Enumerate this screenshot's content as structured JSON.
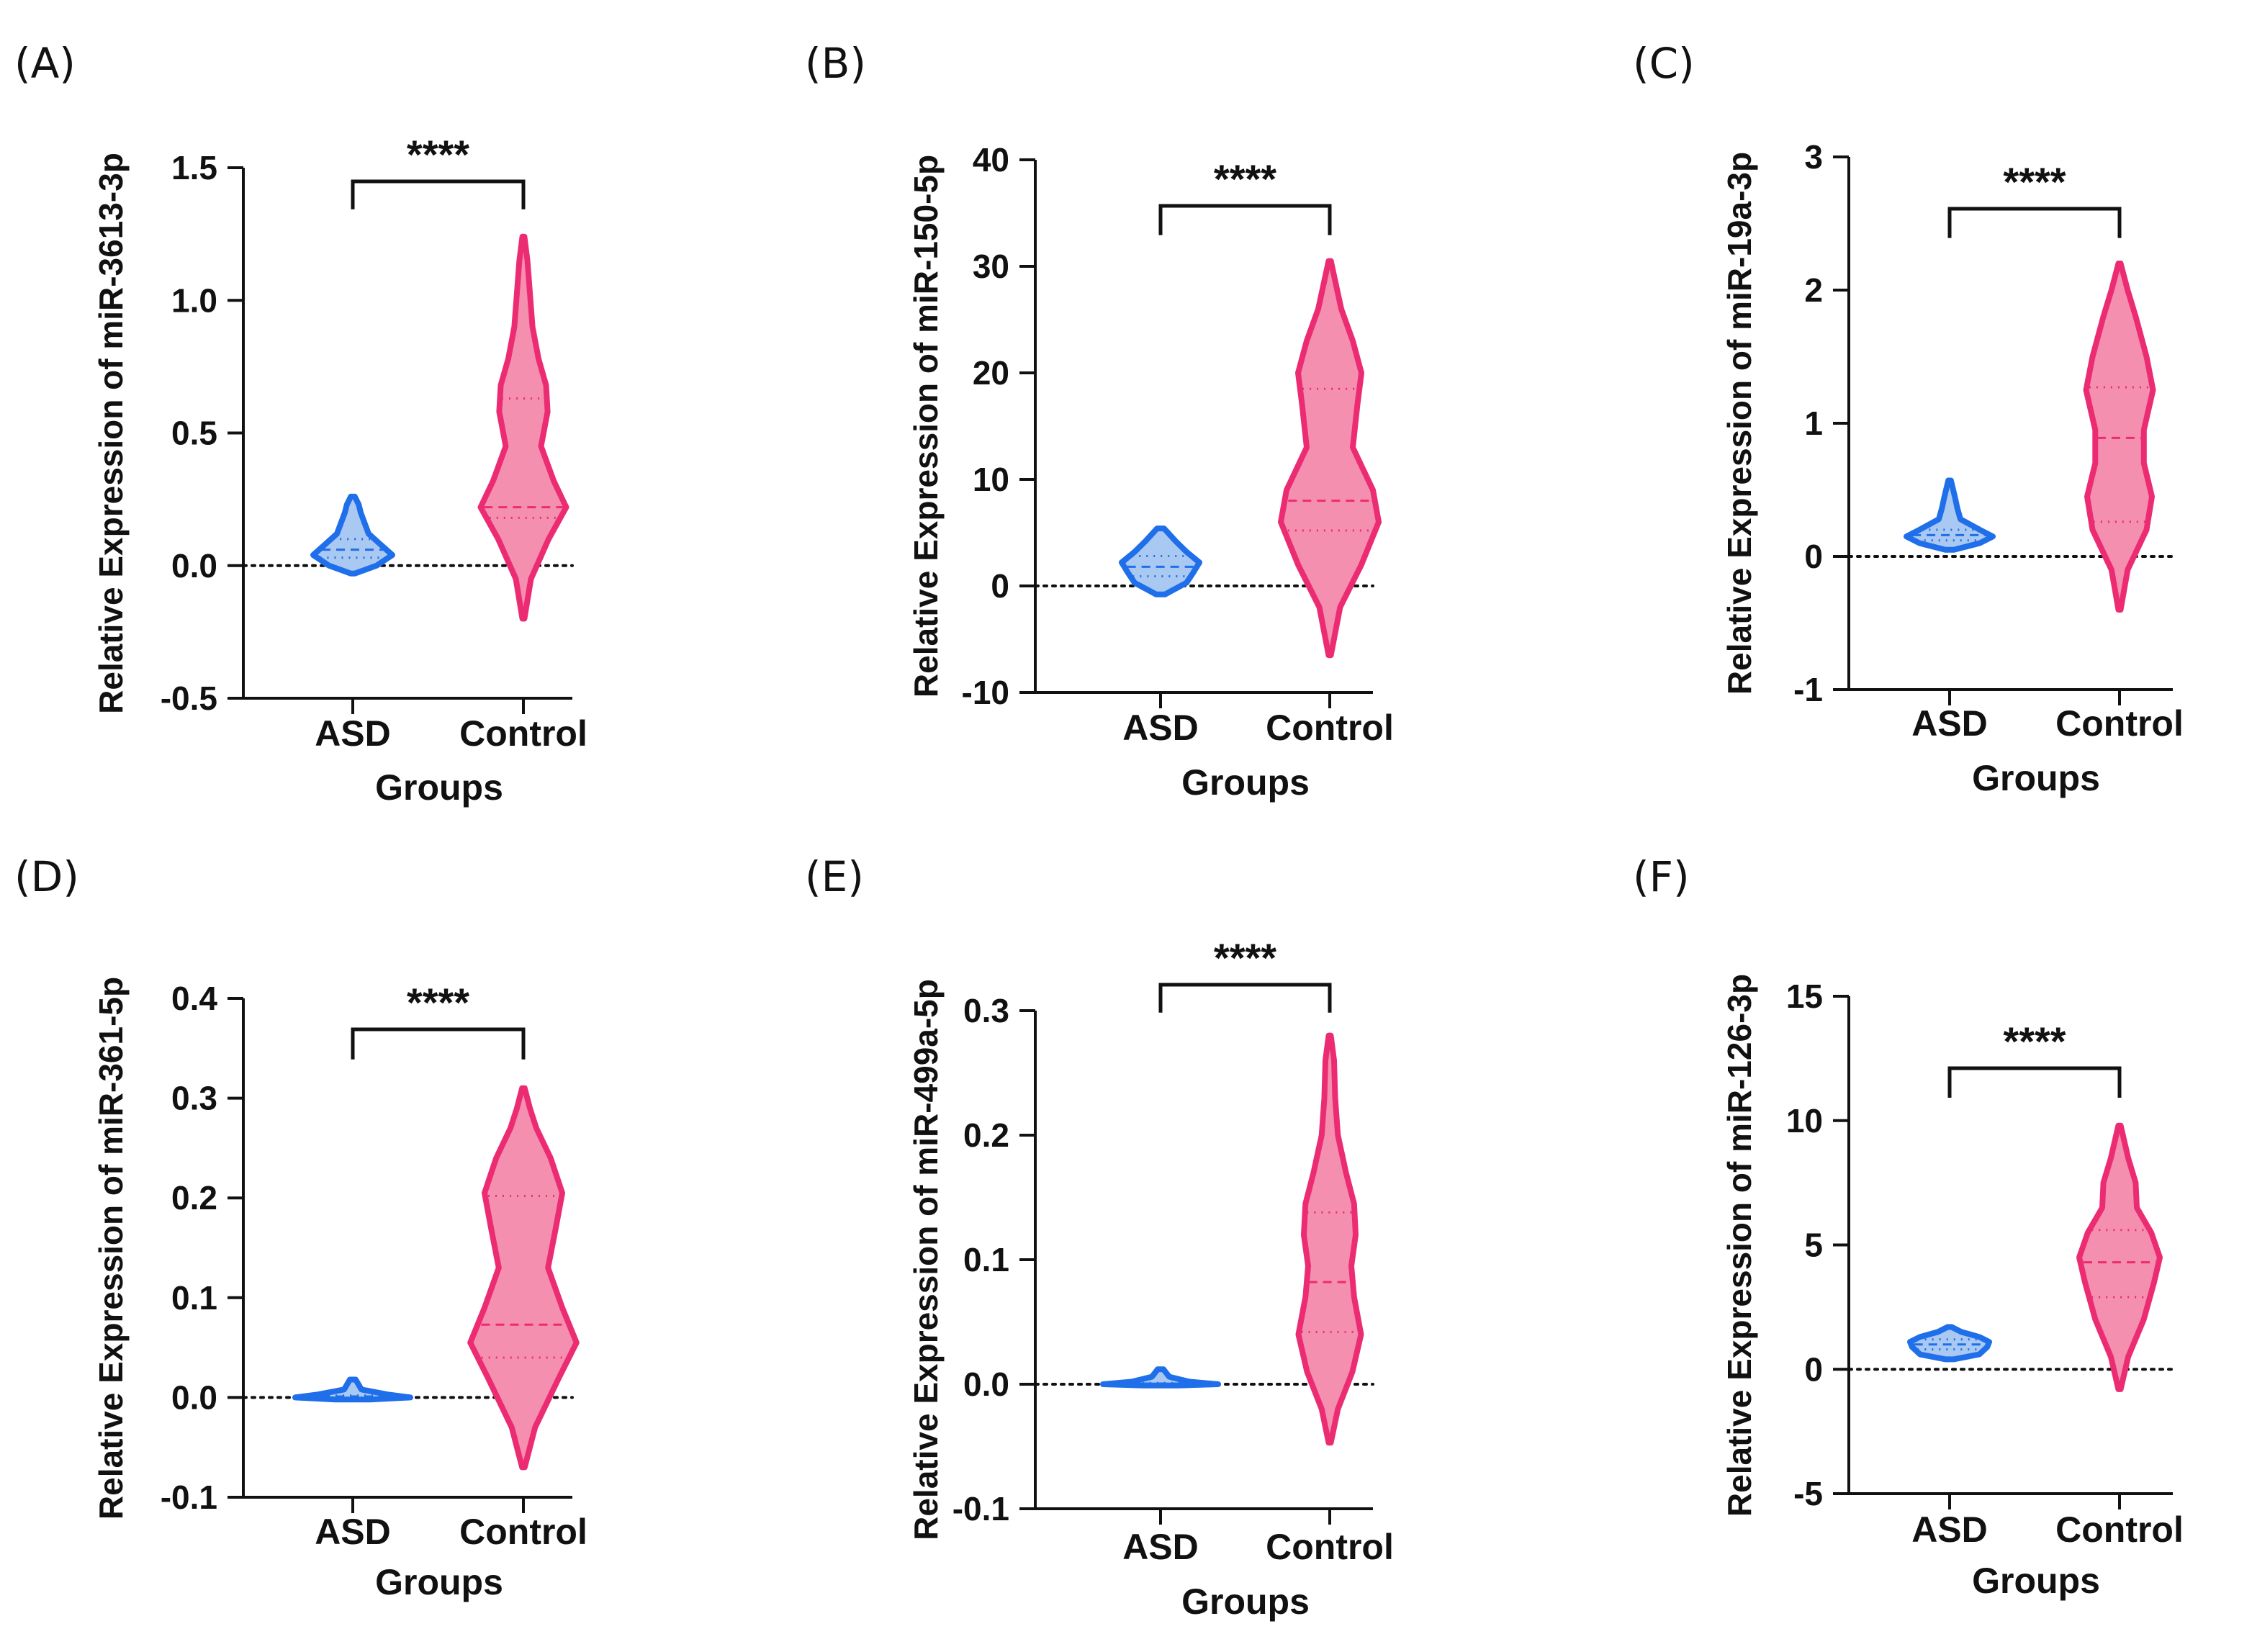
{
  "colors": {
    "asd_stroke": "#1f6fea",
    "asd_fill": "#a9c8f2",
    "control_stroke": "#ec2c72",
    "control_fill": "#f58fb0",
    "axis": "#111111"
  },
  "chart_data": [
    {
      "panel": "(A)",
      "type": "violin",
      "ylabel": "Relative Expression of miR-3613-3p",
      "xlabel": "Groups",
      "categories": [
        "ASD",
        "Control"
      ],
      "ylim": [
        -0.5,
        1.5
      ],
      "yticks": [
        -0.5,
        0.0,
        0.5,
        1.0,
        1.5
      ],
      "ytick_labels": [
        "-0.5",
        "0.0",
        "0.5",
        "1.0",
        "1.5"
      ],
      "significance": "****",
      "reference_line": 0,
      "series": [
        {
          "name": "ASD",
          "min": -0.03,
          "max": 0.26,
          "q1": 0.03,
          "median": 0.06,
          "q3": 0.1,
          "density": [
            [
              -0.03,
              0.05
            ],
            [
              0.0,
              0.6
            ],
            [
              0.04,
              1.0
            ],
            [
              0.08,
              0.7
            ],
            [
              0.12,
              0.4
            ],
            [
              0.16,
              0.3
            ],
            [
              0.2,
              0.2
            ],
            [
              0.23,
              0.15
            ],
            [
              0.26,
              0.05
            ]
          ]
        },
        {
          "name": "Control",
          "min": -0.2,
          "max": 1.24,
          "q1": 0.18,
          "median": 0.22,
          "q3": 0.63,
          "density": [
            [
              -0.2,
              0.02
            ],
            [
              -0.05,
              0.15
            ],
            [
              0.1,
              0.5
            ],
            [
              0.22,
              0.85
            ],
            [
              0.32,
              0.6
            ],
            [
              0.45,
              0.35
            ],
            [
              0.58,
              0.48
            ],
            [
              0.68,
              0.45
            ],
            [
              0.78,
              0.3
            ],
            [
              0.9,
              0.18
            ],
            [
              1.05,
              0.12
            ],
            [
              1.15,
              0.08
            ],
            [
              1.24,
              0.02
            ]
          ]
        }
      ]
    },
    {
      "panel": "(B)",
      "type": "violin",
      "ylabel": "Relative Expression of miR-150-5p",
      "xlabel": "Groups",
      "categories": [
        "ASD",
        "Control"
      ],
      "ylim": [
        -10,
        40
      ],
      "yticks": [
        -10,
        0,
        10,
        20,
        30,
        40
      ],
      "ytick_labels": [
        "-10",
        "0",
        "10",
        "20",
        "30",
        "40"
      ],
      "significance": "****",
      "reference_line": 0,
      "series": [
        {
          "name": "ASD",
          "min": -0.8,
          "max": 5.4,
          "q1": 0.9,
          "median": 1.8,
          "q3": 2.8,
          "density": [
            [
              -0.8,
              0.1
            ],
            [
              0.3,
              0.6
            ],
            [
              1.2,
              0.75
            ],
            [
              2.2,
              0.9
            ],
            [
              3.2,
              0.6
            ],
            [
              4.2,
              0.35
            ],
            [
              5.4,
              0.08
            ]
          ]
        },
        {
          "name": "Control",
          "min": -6.5,
          "max": 30.5,
          "q1": 5.2,
          "median": 8.0,
          "q3": 18.5,
          "density": [
            [
              -6.5,
              0.02
            ],
            [
              -2,
              0.18
            ],
            [
              2,
              0.55
            ],
            [
              6,
              0.85
            ],
            [
              9,
              0.75
            ],
            [
              13,
              0.4
            ],
            [
              17,
              0.48
            ],
            [
              20,
              0.55
            ],
            [
              23,
              0.4
            ],
            [
              26,
              0.2
            ],
            [
              28,
              0.12
            ],
            [
              30.5,
              0.02
            ]
          ]
        }
      ]
    },
    {
      "panel": "(C)",
      "type": "violin",
      "ylabel": "Relative Expression of miR-19a-3p",
      "xlabel": "Groups",
      "categories": [
        "ASD",
        "Control"
      ],
      "ylim": [
        -1,
        3
      ],
      "yticks": [
        -1,
        0,
        1,
        2,
        3
      ],
      "ytick_labels": [
        "-1",
        "0",
        "1",
        "2",
        "3"
      ],
      "significance": "****",
      "reference_line": 0,
      "series": [
        {
          "name": "ASD",
          "min": 0.05,
          "max": 0.57,
          "q1": 0.12,
          "median": 0.16,
          "q3": 0.2,
          "density": [
            [
              0.05,
              0.1
            ],
            [
              0.1,
              0.7
            ],
            [
              0.15,
              1.0
            ],
            [
              0.2,
              0.7
            ],
            [
              0.28,
              0.25
            ],
            [
              0.36,
              0.18
            ],
            [
              0.45,
              0.12
            ],
            [
              0.57,
              0.03
            ]
          ]
        },
        {
          "name": "Control",
          "min": -0.4,
          "max": 2.2,
          "q1": 0.26,
          "median": 0.89,
          "q3": 1.27,
          "density": [
            [
              -0.4,
              0.02
            ],
            [
              -0.1,
              0.15
            ],
            [
              0.2,
              0.5
            ],
            [
              0.45,
              0.6
            ],
            [
              0.7,
              0.45
            ],
            [
              0.95,
              0.45
            ],
            [
              1.25,
              0.62
            ],
            [
              1.5,
              0.5
            ],
            [
              1.8,
              0.3
            ],
            [
              2.0,
              0.15
            ],
            [
              2.2,
              0.02
            ]
          ]
        }
      ]
    },
    {
      "panel": "(D)",
      "type": "violin",
      "ylabel": "Relative Expression of miR-361-5p",
      "xlabel": "Groups",
      "categories": [
        "ASD",
        "Control"
      ],
      "ylim": [
        -0.1,
        0.4
      ],
      "yticks": [
        -0.1,
        0.0,
        0.1,
        0.2,
        0.3,
        0.4
      ],
      "ytick_labels": [
        "-0.1",
        "0.0",
        "0.1",
        "0.2",
        "0.3",
        "0.4"
      ],
      "significance": "****",
      "reference_line": 0,
      "series": [
        {
          "name": "ASD",
          "min": -0.002,
          "max": 0.018,
          "q1": 0.0,
          "median": 0.001,
          "q3": 0.002,
          "density": [
            [
              -0.002,
              0.3
            ],
            [
              0.0,
              1.0
            ],
            [
              0.003,
              0.6
            ],
            [
              0.008,
              0.15
            ],
            [
              0.013,
              0.1
            ],
            [
              0.018,
              0.05
            ]
          ]
        },
        {
          "name": "Control",
          "min": -0.07,
          "max": 0.31,
          "q1": 0.04,
          "median": 0.073,
          "q3": 0.202,
          "density": [
            [
              -0.07,
              0.02
            ],
            [
              -0.03,
              0.18
            ],
            [
              0.02,
              0.55
            ],
            [
              0.055,
              0.82
            ],
            [
              0.09,
              0.6
            ],
            [
              0.13,
              0.38
            ],
            [
              0.17,
              0.5
            ],
            [
              0.205,
              0.6
            ],
            [
              0.24,
              0.42
            ],
            [
              0.27,
              0.2
            ],
            [
              0.29,
              0.1
            ],
            [
              0.31,
              0.02
            ]
          ]
        }
      ]
    },
    {
      "panel": "(E)",
      "type": "violin",
      "ylabel": "Relative Expression of miR-499a-5p",
      "xlabel": "Groups",
      "categories": [
        "ASD",
        "Control"
      ],
      "ylim": [
        -0.1,
        0.3
      ],
      "yticks": [
        -0.1,
        0.0,
        0.1,
        0.2,
        0.3
      ],
      "ytick_labels": [
        "-0.1",
        "0.0",
        "0.1",
        "0.2",
        "0.3"
      ],
      "significance": "****",
      "reference_line": 0,
      "series": [
        {
          "name": "ASD",
          "min": -0.001,
          "max": 0.012,
          "q1": 0.0,
          "median": 0.0005,
          "q3": 0.001,
          "density": [
            [
              -0.001,
              0.3
            ],
            [
              0.0,
              1.0
            ],
            [
              0.002,
              0.5
            ],
            [
              0.006,
              0.15
            ],
            [
              0.009,
              0.1
            ],
            [
              0.012,
              0.05
            ]
          ]
        },
        {
          "name": "Control",
          "min": -0.047,
          "max": 0.28,
          "q1": 0.042,
          "median": 0.082,
          "q3": 0.138,
          "density": [
            [
              -0.047,
              0.02
            ],
            [
              -0.02,
              0.15
            ],
            [
              0.01,
              0.42
            ],
            [
              0.04,
              0.58
            ],
            [
              0.07,
              0.45
            ],
            [
              0.095,
              0.4
            ],
            [
              0.12,
              0.48
            ],
            [
              0.145,
              0.45
            ],
            [
              0.17,
              0.3
            ],
            [
              0.2,
              0.15
            ],
            [
              0.23,
              0.1
            ],
            [
              0.26,
              0.08
            ],
            [
              0.28,
              0.02
            ]
          ]
        }
      ]
    },
    {
      "panel": "(F)",
      "type": "violin",
      "ylabel": "Relative Expression of miR-126-3p",
      "xlabel": "Groups",
      "categories": [
        "ASD",
        "Control"
      ],
      "ylim": [
        -5,
        15
      ],
      "yticks": [
        -5,
        0,
        5,
        10,
        15
      ],
      "ytick_labels": [
        "-5",
        "0",
        "5",
        "10",
        "15"
      ],
      "significance": "****",
      "reference_line": 0,
      "series": [
        {
          "name": "ASD",
          "min": 0.4,
          "max": 1.7,
          "q1": 0.8,
          "median": 1.0,
          "q3": 1.2,
          "density": [
            [
              0.4,
              0.1
            ],
            [
              0.6,
              0.75
            ],
            [
              0.9,
              0.95
            ],
            [
              1.1,
              1.0
            ],
            [
              1.3,
              0.75
            ],
            [
              1.5,
              0.3
            ],
            [
              1.7,
              0.05
            ]
          ]
        },
        {
          "name": "Control",
          "min": -0.8,
          "max": 9.8,
          "q1": 2.9,
          "median": 4.3,
          "q3": 5.6,
          "density": [
            [
              -0.8,
              0.02
            ],
            [
              0.5,
              0.15
            ],
            [
              2,
              0.42
            ],
            [
              3.5,
              0.6
            ],
            [
              4.5,
              0.7
            ],
            [
              5.5,
              0.55
            ],
            [
              6.5,
              0.3
            ],
            [
              7.5,
              0.28
            ],
            [
              8.5,
              0.15
            ],
            [
              9.8,
              0.02
            ]
          ]
        }
      ]
    }
  ]
}
